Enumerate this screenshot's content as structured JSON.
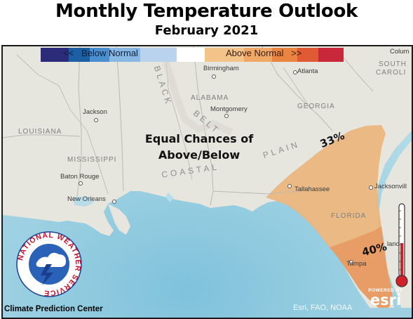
{
  "header": {
    "title": "Monthly Temperature Outlook",
    "subtitle": "February 2021"
  },
  "legend": {
    "below_label": "<<   Below Normal",
    "above_label": "Above Normal   >>",
    "below_colors": [
      "#2c2b7a",
      "#1d5fa3",
      "#4a8fd0",
      "#8ab8e4",
      "#b9d3ee"
    ],
    "neutral_color": "#ffffff",
    "above_colors": [
      "#f2c48a",
      "#f0a866",
      "#ea8541",
      "#e05a33",
      "#c8283a"
    ]
  },
  "forecast": {
    "equal_chances_line1": "Equal Chances of",
    "equal_chances_line2": "Above/Below",
    "probability_33": "33%",
    "probability_40": "40%",
    "color_33": "#ebb57c",
    "color_40": "#e9a06a"
  },
  "cities": {
    "birmingham": "Birmingham",
    "atlanta": "Atlanta",
    "jackson": "Jackson",
    "montgomery": "Montgomery",
    "baton_rouge": "Baton Rouge",
    "new_orleans": "New Orleans",
    "tallahassee": "Tallahassee",
    "jacksonville": "Jacksonvill",
    "tampa": "Tampa",
    "orlando": "lando",
    "columbia": "Colum"
  },
  "states": {
    "louisiana": "LOUISIANA",
    "mississippi": "MISSISSIPPI",
    "alabama": "ALABAMA",
    "georgia": "GEORGIA",
    "florida": "FLORIDA",
    "south_carolina_1": "SOUTH",
    "south_carolina_2": "CAROLI"
  },
  "features": {
    "black_belt_1": "BLACK",
    "black_belt_2": "BELT",
    "coastal_plain_1": "COASTAL",
    "coastal_plain_2": "PLAIN"
  },
  "credits": {
    "source": "Esri, FAO, NOAA",
    "powered_by": "POWERED BY",
    "esri": "esri",
    "center": "Climate Prediction Center",
    "nws_ring": "NATIONAL WEATHER SERVICE"
  },
  "colors": {
    "land": "#e7e6df",
    "water": "#aad3df",
    "border": "#c9c6c0"
  }
}
